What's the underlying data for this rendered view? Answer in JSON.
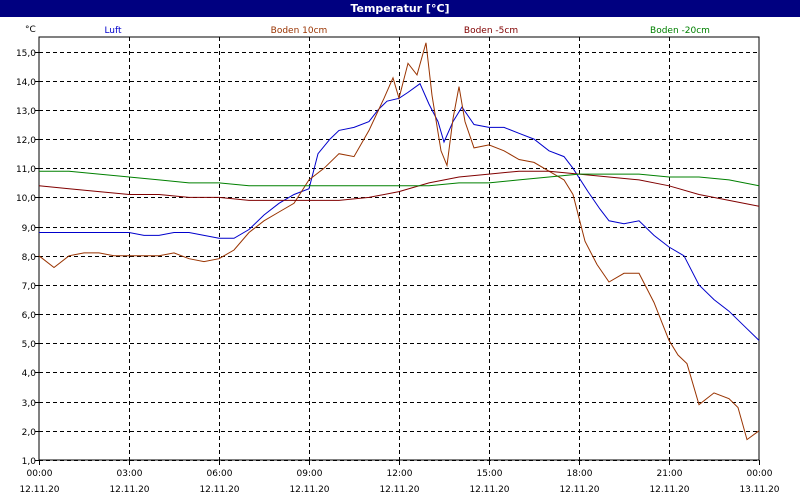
{
  "window": {
    "title": "Temperatur [°C]"
  },
  "chart_data": {
    "type": "line",
    "ylabel": "°C",
    "ylim": [
      1.0,
      15.5
    ],
    "yticks": [
      1.0,
      2.0,
      3.0,
      4.0,
      5.0,
      6.0,
      7.0,
      8.0,
      9.0,
      10.0,
      11.0,
      12.0,
      13.0,
      14.0,
      15.0
    ],
    "yticklabels": [
      "1,0",
      "2,0",
      "3,0",
      "4,0",
      "5,0",
      "6,0",
      "7,0",
      "8,0",
      "9,0",
      "10,0",
      "11,0",
      "12,0",
      "13,0",
      "14,0",
      "15,0"
    ],
    "xlim": [
      0,
      24
    ],
    "xticks": [
      {
        "h": 0,
        "time": "00:00",
        "date": "12.11.20"
      },
      {
        "h": 3,
        "time": "03:00",
        "date": "12.11.20"
      },
      {
        "h": 6,
        "time": "06:00",
        "date": "12.11.20"
      },
      {
        "h": 9,
        "time": "09:00",
        "date": "12.11.20"
      },
      {
        "h": 12,
        "time": "12:00",
        "date": "12.11.20"
      },
      {
        "h": 15,
        "time": "15:00",
        "date": "12.11.20"
      },
      {
        "h": 18,
        "time": "18:00",
        "date": "12.11.20"
      },
      {
        "h": 21,
        "time": "21:00",
        "date": "12.11.20"
      },
      {
        "h": 24,
        "time": "00:00",
        "date": "13.11.20"
      }
    ],
    "grid": true,
    "legend_position": "top",
    "series": [
      {
        "name": "Luft",
        "color": "#0000cc",
        "x": [
          0,
          1,
          2,
          3,
          3.5,
          4,
          4.5,
          5,
          5.5,
          6,
          6.5,
          7,
          7.5,
          8,
          8.5,
          9,
          9.3,
          9.7,
          10,
          10.5,
          11,
          11.3,
          11.6,
          12,
          12.3,
          12.7,
          13.0,
          13.3,
          13.5,
          13.8,
          14.1,
          14.5,
          15,
          15.5,
          16,
          16.5,
          17,
          17.5,
          17.8,
          18.3,
          18.7,
          19,
          19.5,
          20,
          20.5,
          21,
          21.5,
          22,
          22.5,
          23,
          23.5,
          24
        ],
        "y": [
          8.8,
          8.8,
          8.8,
          8.8,
          8.7,
          8.7,
          8.8,
          8.8,
          8.7,
          8.6,
          8.6,
          8.9,
          9.4,
          9.8,
          10.1,
          10.3,
          11.5,
          12.0,
          12.3,
          12.4,
          12.6,
          13.0,
          13.3,
          13.4,
          13.6,
          13.9,
          13.2,
          12.6,
          11.9,
          12.6,
          13.1,
          12.5,
          12.4,
          12.4,
          12.2,
          12.0,
          11.6,
          11.4,
          11.0,
          10.2,
          9.6,
          9.2,
          9.1,
          9.2,
          8.7,
          8.3,
          8.0,
          7.0,
          6.5,
          6.1,
          5.6,
          5.1
        ]
      },
      {
        "name": "Boden 10cm",
        "color": "#993300",
        "x": [
          0,
          0.5,
          1,
          1.5,
          2,
          2.5,
          3,
          3.5,
          4,
          4.5,
          5,
          5.5,
          6,
          6.5,
          7,
          7.5,
          8,
          8.5,
          9,
          9.5,
          10,
          10.5,
          11,
          11.5,
          11.8,
          12.0,
          12.3,
          12.6,
          12.9,
          13.1,
          13.4,
          13.6,
          13.8,
          14.0,
          14.2,
          14.5,
          15,
          15.5,
          16,
          16.5,
          17,
          17.5,
          17.8,
          18.2,
          18.6,
          19,
          19.5,
          20,
          20.5,
          21,
          21.3,
          21.6,
          22,
          22.5,
          23,
          23.3,
          23.6,
          24
        ],
        "y": [
          8.0,
          7.6,
          8.0,
          8.1,
          8.1,
          8.0,
          8.0,
          8.0,
          8.0,
          8.1,
          7.9,
          7.8,
          7.9,
          8.2,
          8.8,
          9.2,
          9.5,
          9.8,
          10.6,
          11.0,
          11.5,
          11.4,
          12.3,
          13.4,
          14.1,
          13.4,
          14.6,
          14.2,
          15.3,
          13.5,
          11.6,
          11.1,
          12.7,
          13.8,
          12.6,
          11.7,
          11.8,
          11.6,
          11.3,
          11.2,
          10.9,
          10.6,
          10.1,
          8.5,
          7.7,
          7.1,
          7.4,
          7.4,
          6.4,
          5.1,
          4.6,
          4.3,
          2.9,
          3.3,
          3.1,
          2.8,
          1.7,
          2.0
        ]
      },
      {
        "name": "Boden -5cm",
        "color": "#800000",
        "x": [
          0,
          1,
          2,
          3,
          4,
          5,
          6,
          7,
          8,
          9,
          10,
          11,
          12,
          13,
          14,
          15,
          16,
          17,
          18,
          19,
          20,
          21,
          22,
          23,
          24
        ],
        "y": [
          10.4,
          10.3,
          10.2,
          10.1,
          10.1,
          10.0,
          10.0,
          9.9,
          9.9,
          9.9,
          9.9,
          10.0,
          10.2,
          10.5,
          10.7,
          10.8,
          10.9,
          10.9,
          10.8,
          10.7,
          10.6,
          10.4,
          10.1,
          9.9,
          9.7
        ]
      },
      {
        "name": "Boden -20cm",
        "color": "#008000",
        "x": [
          0,
          1,
          2,
          3,
          4,
          5,
          6,
          7,
          8,
          9,
          10,
          11,
          12,
          13,
          14,
          15,
          16,
          17,
          18,
          19,
          20,
          21,
          22,
          23,
          24
        ],
        "y": [
          10.9,
          10.9,
          10.8,
          10.7,
          10.6,
          10.5,
          10.5,
          10.4,
          10.4,
          10.4,
          10.4,
          10.4,
          10.4,
          10.4,
          10.5,
          10.5,
          10.6,
          10.7,
          10.8,
          10.8,
          10.8,
          10.7,
          10.7,
          10.6,
          10.4
        ]
      }
    ]
  }
}
